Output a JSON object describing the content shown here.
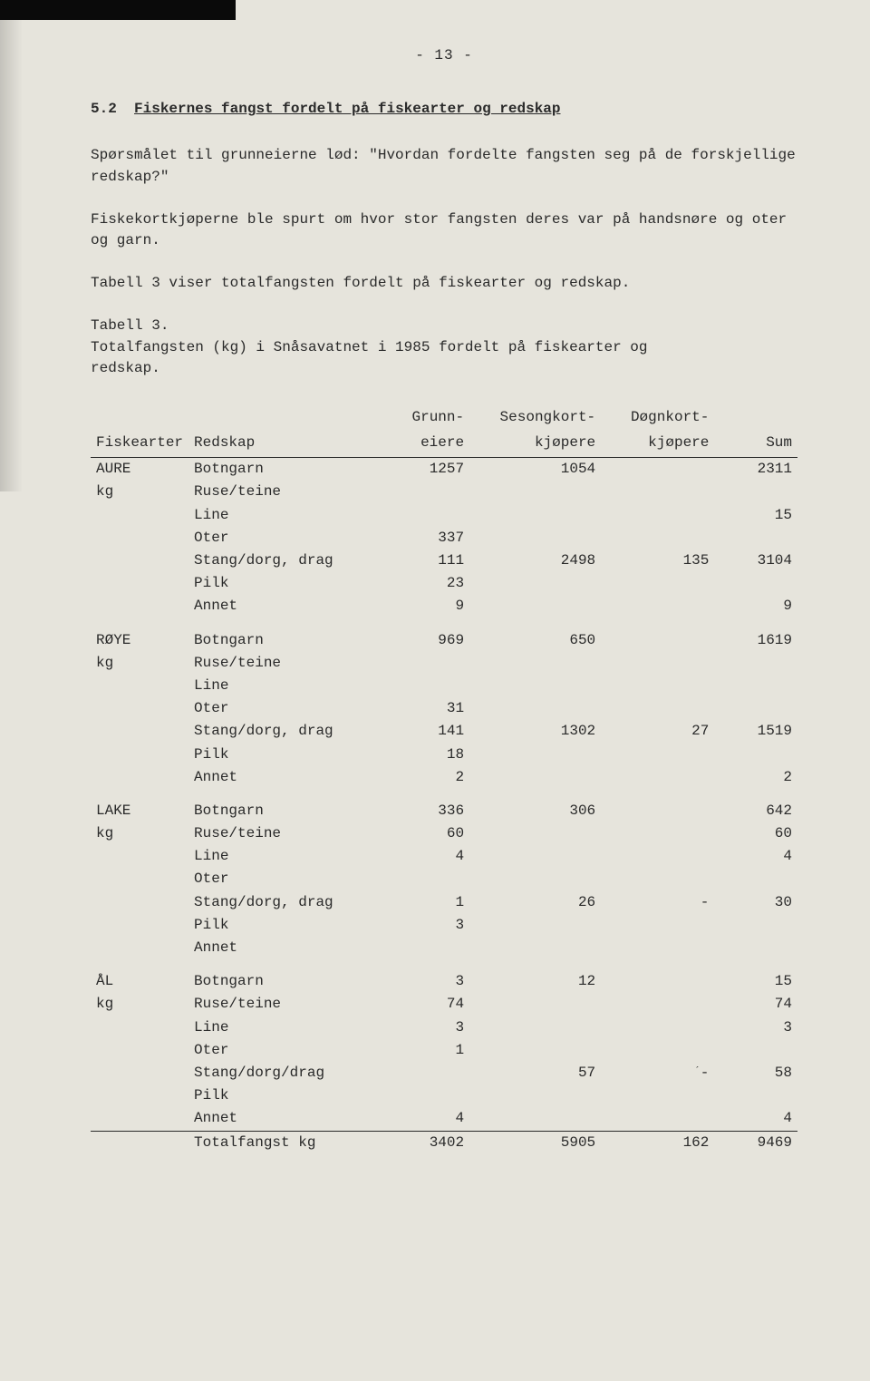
{
  "page": {
    "number_display": "- 13 -",
    "section_number": "5.2",
    "section_title": "Fiskernes fangst fordelt på fiskearter og redskap",
    "para1": "Spørsmålet til grunneierne lød: \"Hvordan fordelte fangsten seg på de forskjellige redskap?\"",
    "para2": "Fiskekortkjøperne ble spurt om hvor stor fangsten deres var på handsnøre og oter og garn.",
    "para3": "Tabell 3 viser totalfangsten fordelt på fiskearter og redskap.",
    "table_caption_label": "Tabell 3.",
    "table_caption_text": "Totalfangsten (kg) i Snåsavatnet i 1985 fordelt på fiskearter og redskap."
  },
  "table": {
    "columns": {
      "fiskearter": "Fiskearter",
      "redskap": "Redskap",
      "grunn1": "Grunn-",
      "grunn2": "eiere",
      "sesong1": "Sesongkort-",
      "sesong2": "kjøpere",
      "dogn1": "Døgnkort-",
      "dogn2": "kjøpere",
      "sum": "Sum"
    },
    "groups": [
      {
        "species": "AURE",
        "unit": "kg",
        "rows": [
          {
            "redskap": "Botngarn",
            "grunn": "1257",
            "sesong": "1054",
            "dogn": "",
            "sum": "2311"
          },
          {
            "redskap": "Ruse/teine",
            "grunn": "",
            "sesong": "",
            "dogn": "",
            "sum": ""
          },
          {
            "redskap": "Line",
            "grunn": "",
            "sesong": "",
            "dogn": "",
            "sum": "15"
          },
          {
            "redskap": "Oter",
            "grunn": "337",
            "sesong": "",
            "dogn": "",
            "sum": ""
          },
          {
            "redskap": "Stang/dorg, drag",
            "grunn": "111",
            "sesong": "2498",
            "dogn": "135",
            "sum": "3104"
          },
          {
            "redskap": "Pilk",
            "grunn": "23",
            "sesong": "",
            "dogn": "",
            "sum": ""
          },
          {
            "redskap": "Annet",
            "grunn": "9",
            "sesong": "",
            "dogn": "",
            "sum": "9"
          }
        ]
      },
      {
        "species": "RØYE",
        "unit": "kg",
        "rows": [
          {
            "redskap": "Botngarn",
            "grunn": "969",
            "sesong": "650",
            "dogn": "",
            "sum": "1619"
          },
          {
            "redskap": "Ruse/teine",
            "grunn": "",
            "sesong": "",
            "dogn": "",
            "sum": ""
          },
          {
            "redskap": "Line",
            "grunn": "",
            "sesong": "",
            "dogn": "",
            "sum": ""
          },
          {
            "redskap": "Oter",
            "grunn": "31",
            "sesong": "",
            "dogn": "",
            "sum": ""
          },
          {
            "redskap": "Stang/dorg, drag",
            "grunn": "141",
            "sesong": "1302",
            "dogn": "27",
            "sum": "1519"
          },
          {
            "redskap": "Pilk",
            "grunn": "18",
            "sesong": "",
            "dogn": "",
            "sum": ""
          },
          {
            "redskap": "Annet",
            "grunn": "2",
            "sesong": "",
            "dogn": "",
            "sum": "2"
          }
        ]
      },
      {
        "species": "LAKE",
        "unit": "kg",
        "rows": [
          {
            "redskap": "Botngarn",
            "grunn": "336",
            "sesong": "306",
            "dogn": "",
            "sum": "642"
          },
          {
            "redskap": "Ruse/teine",
            "grunn": "60",
            "sesong": "",
            "dogn": "",
            "sum": "60"
          },
          {
            "redskap": "Line",
            "grunn": "4",
            "sesong": "",
            "dogn": "",
            "sum": "4"
          },
          {
            "redskap": "Oter",
            "grunn": "",
            "sesong": "",
            "dogn": "",
            "sum": ""
          },
          {
            "redskap": "Stang/dorg, drag",
            "grunn": "1",
            "sesong": "26",
            "dogn": "-",
            "sum": "30"
          },
          {
            "redskap": "Pilk",
            "grunn": "3",
            "sesong": "",
            "dogn": "",
            "sum": ""
          },
          {
            "redskap": "Annet",
            "grunn": "",
            "sesong": "",
            "dogn": "",
            "sum": ""
          }
        ]
      },
      {
        "species": "ÅL",
        "unit": "kg",
        "rows": [
          {
            "redskap": "Botngarn",
            "grunn": "3",
            "sesong": "12",
            "dogn": "",
            "sum": "15"
          },
          {
            "redskap": "Ruse/teine",
            "grunn": "74",
            "sesong": "",
            "dogn": "",
            "sum": "74"
          },
          {
            "redskap": "Line",
            "grunn": "3",
            "sesong": "",
            "dogn": "",
            "sum": "3"
          },
          {
            "redskap": "Oter",
            "grunn": "1",
            "sesong": "",
            "dogn": "",
            "sum": ""
          },
          {
            "redskap": "Stang/dorg/drag",
            "grunn": "",
            "sesong": "57",
            "dogn": "-",
            "tick": true,
            "sum": "58"
          },
          {
            "redskap": "Pilk",
            "grunn": "",
            "sesong": "",
            "dogn": "",
            "sum": ""
          },
          {
            "redskap": "Annet",
            "grunn": "4",
            "sesong": "",
            "dogn": "",
            "sum": "4"
          }
        ]
      }
    ],
    "total": {
      "label": "Totalfangst kg",
      "grunn": "3402",
      "sesong": "5905",
      "dogn": "162",
      "sum": "9469"
    }
  },
  "colors": {
    "background": "#e6e4dc",
    "text": "#2a2a2a",
    "rule": "#2a2a2a"
  }
}
